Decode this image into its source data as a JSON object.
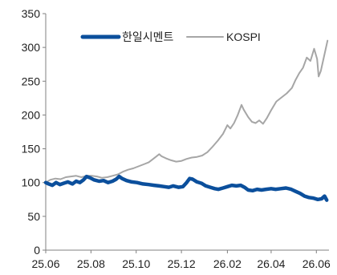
{
  "chart_data": {
    "type": "line",
    "title": "",
    "xlabel": "",
    "ylabel": "",
    "x_ticks": [
      "25.06",
      "25.08",
      "25.10",
      "25.12",
      "26.02",
      "26.04",
      "26.06"
    ],
    "xlim": [
      "2025-06-01",
      "2026-06-18"
    ],
    "ylim": [
      0,
      350
    ],
    "y_ticks": [
      0,
      50,
      100,
      150,
      200,
      250,
      300,
      350
    ],
    "grid": false,
    "legend_position": "top",
    "series": [
      {
        "name": "한일시멘트",
        "color": "#0b4f9c",
        "points": [
          [
            "2025-06-01",
            100
          ],
          [
            "2025-06-05",
            98
          ],
          [
            "2025-06-10",
            96
          ],
          [
            "2025-06-15",
            100
          ],
          [
            "2025-06-20",
            97
          ],
          [
            "2025-06-25",
            99
          ],
          [
            "2025-07-01",
            101
          ],
          [
            "2025-07-07",
            98
          ],
          [
            "2025-07-12",
            102
          ],
          [
            "2025-07-17",
            100
          ],
          [
            "2025-07-22",
            104
          ],
          [
            "2025-07-26",
            109
          ],
          [
            "2025-07-31",
            107
          ],
          [
            "2025-08-05",
            104
          ],
          [
            "2025-08-12",
            102
          ],
          [
            "2025-08-18",
            103
          ],
          [
            "2025-08-24",
            100
          ],
          [
            "2025-08-30",
            102
          ],
          [
            "2025-09-04",
            105
          ],
          [
            "2025-09-08",
            109
          ],
          [
            "2025-09-12",
            106
          ],
          [
            "2025-09-18",
            103
          ],
          [
            "2025-09-25",
            101
          ],
          [
            "2025-10-02",
            100
          ],
          [
            "2025-10-10",
            98
          ],
          [
            "2025-10-18",
            97
          ],
          [
            "2025-10-25",
            96
          ],
          [
            "2025-11-01",
            95
          ],
          [
            "2025-11-08",
            94
          ],
          [
            "2025-11-14",
            93
          ],
          [
            "2025-11-20",
            95
          ],
          [
            "2025-11-27",
            93
          ],
          [
            "2025-12-03",
            94
          ],
          [
            "2025-12-08",
            100
          ],
          [
            "2025-12-12",
            106
          ],
          [
            "2025-12-16",
            105
          ],
          [
            "2025-12-22",
            101
          ],
          [
            "2025-12-28",
            99
          ],
          [
            "2026-01-03",
            95
          ],
          [
            "2026-01-09",
            93
          ],
          [
            "2026-01-15",
            91
          ],
          [
            "2026-01-20",
            90
          ],
          [
            "2026-01-26",
            92
          ],
          [
            "2026-02-01",
            94
          ],
          [
            "2026-02-07",
            96
          ],
          [
            "2026-02-13",
            95
          ],
          [
            "2026-02-19",
            96
          ],
          [
            "2026-02-24",
            93
          ],
          [
            "2026-03-01",
            89
          ],
          [
            "2026-03-07",
            88
          ],
          [
            "2026-03-13",
            90
          ],
          [
            "2026-03-19",
            89
          ],
          [
            "2026-03-25",
            90
          ],
          [
            "2026-04-01",
            91
          ],
          [
            "2026-04-07",
            90
          ],
          [
            "2026-04-14",
            91
          ],
          [
            "2026-04-21",
            92
          ],
          [
            "2026-04-28",
            90
          ],
          [
            "2026-05-04",
            87
          ],
          [
            "2026-05-10",
            84
          ],
          [
            "2026-05-16",
            80
          ],
          [
            "2026-05-22",
            78
          ],
          [
            "2026-05-28",
            77
          ],
          [
            "2026-06-03",
            75
          ],
          [
            "2026-06-08",
            76
          ],
          [
            "2026-06-12",
            80
          ],
          [
            "2026-06-15",
            74
          ]
        ]
      },
      {
        "name": "KOSPI",
        "color": "#a6a6a6",
        "points": [
          [
            "2025-06-01",
            100
          ],
          [
            "2025-06-07",
            104
          ],
          [
            "2025-06-14",
            106
          ],
          [
            "2025-06-21",
            105
          ],
          [
            "2025-06-28",
            108
          ],
          [
            "2025-07-05",
            109
          ],
          [
            "2025-07-12",
            110
          ],
          [
            "2025-07-19",
            108
          ],
          [
            "2025-07-26",
            110
          ],
          [
            "2025-08-02",
            110
          ],
          [
            "2025-08-09",
            109
          ],
          [
            "2025-08-16",
            107
          ],
          [
            "2025-08-23",
            108
          ],
          [
            "2025-08-30",
            110
          ],
          [
            "2025-09-06",
            112
          ],
          [
            "2025-09-13",
            116
          ],
          [
            "2025-09-20",
            119
          ],
          [
            "2025-09-27",
            121
          ],
          [
            "2025-10-04",
            124
          ],
          [
            "2025-10-11",
            127
          ],
          [
            "2025-10-18",
            130
          ],
          [
            "2025-10-25",
            136
          ],
          [
            "2025-11-01",
            142
          ],
          [
            "2025-11-04",
            139
          ],
          [
            "2025-11-10",
            136
          ],
          [
            "2025-11-17",
            133
          ],
          [
            "2025-11-24",
            131
          ],
          [
            "2025-12-01",
            132
          ],
          [
            "2025-12-08",
            135
          ],
          [
            "2025-12-15",
            137
          ],
          [
            "2025-12-22",
            138
          ],
          [
            "2025-12-29",
            140
          ],
          [
            "2026-01-05",
            145
          ],
          [
            "2026-01-12",
            153
          ],
          [
            "2026-01-19",
            162
          ],
          [
            "2026-01-26",
            172
          ],
          [
            "2026-02-01",
            185
          ],
          [
            "2026-02-05",
            180
          ],
          [
            "2026-02-10",
            188
          ],
          [
            "2026-02-15",
            200
          ],
          [
            "2026-02-20",
            215
          ],
          [
            "2026-02-23",
            208
          ],
          [
            "2026-03-01",
            197
          ],
          [
            "2026-03-06",
            190
          ],
          [
            "2026-03-11",
            188
          ],
          [
            "2026-03-16",
            192
          ],
          [
            "2026-03-21",
            187
          ],
          [
            "2026-03-26",
            195
          ],
          [
            "2026-04-01",
            207
          ],
          [
            "2026-04-08",
            220
          ],
          [
            "2026-04-15",
            226
          ],
          [
            "2026-04-22",
            232
          ],
          [
            "2026-04-29",
            240
          ],
          [
            "2026-05-04",
            252
          ],
          [
            "2026-05-09",
            262
          ],
          [
            "2026-05-14",
            270
          ],
          [
            "2026-05-19",
            285
          ],
          [
            "2026-05-24",
            280
          ],
          [
            "2026-05-29",
            298
          ],
          [
            "2026-06-02",
            283
          ],
          [
            "2026-06-04",
            257
          ],
          [
            "2026-06-07",
            265
          ],
          [
            "2026-06-10",
            280
          ],
          [
            "2026-06-13",
            295
          ],
          [
            "2026-06-16",
            310
          ]
        ]
      }
    ]
  }
}
